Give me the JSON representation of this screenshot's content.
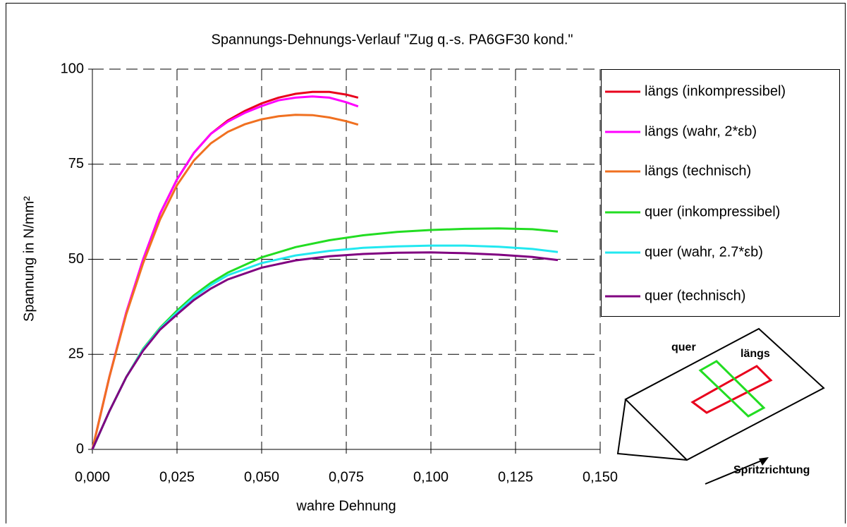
{
  "chart_data": {
    "type": "line",
    "title": "Spannungs-Dehnungs-Verlauf \"Zug q.-s. PA6GF30 kond.\"",
    "xlabel": "wahre Dehnung",
    "ylabel": "Spannung in N/mm²",
    "xlim": [
      0,
      0.15
    ],
    "ylim": [
      0,
      100
    ],
    "xticks": [
      {
        "value": 0,
        "label": "0,000"
      },
      {
        "value": 0.025,
        "label": "0,025"
      },
      {
        "value": 0.05,
        "label": "0,050"
      },
      {
        "value": 0.075,
        "label": "0,075"
      },
      {
        "value": 0.1,
        "label": "0,100"
      },
      {
        "value": 0.125,
        "label": "0,125"
      },
      {
        "value": 0.15,
        "label": "0,150"
      }
    ],
    "yticks": [
      0,
      25,
      50,
      75,
      100
    ],
    "grid": true,
    "legend": "right",
    "series": [
      {
        "name": "längs (inkompressibel)",
        "color": "#e8001c",
        "x": [
          0,
          0.005,
          0.01,
          0.015,
          0.02,
          0.025,
          0.03,
          0.035,
          0.04,
          0.045,
          0.05,
          0.055,
          0.06,
          0.065,
          0.07,
          0.075,
          0.0785
        ],
        "values": [
          0,
          19,
          36,
          50,
          62,
          71,
          78,
          83,
          86.5,
          89,
          91,
          92.5,
          93.5,
          94,
          94,
          93.3,
          92.5
        ]
      },
      {
        "name": "längs (wahr, 2*εb)",
        "color": "#ff00ff",
        "x": [
          0,
          0.005,
          0.01,
          0.015,
          0.02,
          0.025,
          0.03,
          0.035,
          0.04,
          0.045,
          0.05,
          0.055,
          0.06,
          0.065,
          0.07,
          0.075,
          0.0785
        ],
        "values": [
          0,
          19,
          36,
          50,
          62,
          71,
          78,
          83,
          86.2,
          88.5,
          90.3,
          91.8,
          92.5,
          92.8,
          92.5,
          91.3,
          90.2
        ]
      },
      {
        "name": "längs (technisch)",
        "color": "#f07020",
        "x": [
          0,
          0.005,
          0.01,
          0.015,
          0.02,
          0.025,
          0.03,
          0.035,
          0.04,
          0.045,
          0.05,
          0.055,
          0.06,
          0.065,
          0.07,
          0.075,
          0.0785
        ],
        "values": [
          0,
          19,
          35.5,
          49,
          60.5,
          69.5,
          76,
          80.5,
          83.5,
          85.5,
          86.8,
          87.6,
          88,
          87.9,
          87.3,
          86.3,
          85.4
        ]
      },
      {
        "name": "quer (inkompressibel)",
        "color": "#22dd22",
        "x": [
          0,
          0.005,
          0.01,
          0.015,
          0.02,
          0.025,
          0.03,
          0.035,
          0.04,
          0.05,
          0.06,
          0.07,
          0.08,
          0.09,
          0.1,
          0.11,
          0.12,
          0.13,
          0.1375
        ],
        "values": [
          0,
          10,
          19,
          26.5,
          32,
          36.5,
          40.5,
          43.8,
          46.5,
          50.5,
          53.2,
          55,
          56.3,
          57.2,
          57.7,
          58,
          58.1,
          57.9,
          57.3
        ]
      },
      {
        "name": "quer (wahr, 2.7*εb)",
        "color": "#22e8f0",
        "x": [
          0,
          0.005,
          0.01,
          0.015,
          0.02,
          0.025,
          0.03,
          0.035,
          0.04,
          0.05,
          0.06,
          0.07,
          0.08,
          0.09,
          0.1,
          0.11,
          0.12,
          0.13,
          0.1375
        ],
        "values": [
          0,
          10,
          19,
          26.3,
          31.8,
          36,
          40,
          43.2,
          45.8,
          49,
          51,
          52.2,
          53,
          53.4,
          53.6,
          53.6,
          53.3,
          52.7,
          51.9
        ]
      },
      {
        "name": "quer (technisch)",
        "color": "#800080",
        "x": [
          0,
          0.005,
          0.01,
          0.015,
          0.02,
          0.025,
          0.03,
          0.035,
          0.04,
          0.05,
          0.06,
          0.07,
          0.08,
          0.09,
          0.1,
          0.11,
          0.12,
          0.13,
          0.1375
        ],
        "values": [
          0,
          10,
          19,
          26,
          31.5,
          35.5,
          39.3,
          42.3,
          44.7,
          47.8,
          49.7,
          50.8,
          51.4,
          51.7,
          51.8,
          51.6,
          51.2,
          50.6,
          49.8
        ]
      }
    ],
    "annotations": [
      "quer",
      "längs",
      "Spritzrichtung"
    ]
  }
}
